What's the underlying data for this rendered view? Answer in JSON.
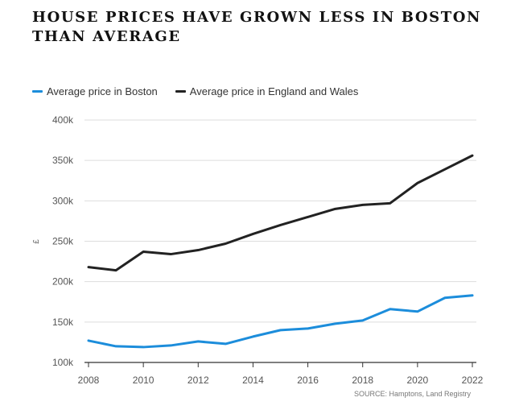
{
  "title": "HOUSE PRICES HAVE GROWN LESS IN BOSTON THAN AVERAGE",
  "source": "SOURCE: Hamptons, Land Registry",
  "colors": {
    "boston": "#1c8ddb",
    "england_wales": "#222222",
    "grid": "#dddddd"
  },
  "chart_data": {
    "type": "line",
    "title": "HOUSE PRICES HAVE GROWN LESS IN BOSTON THAN AVERAGE",
    "xlabel": "",
    "ylabel": "£",
    "x": [
      2008,
      2009,
      2010,
      2011,
      2012,
      2013,
      2014,
      2015,
      2016,
      2017,
      2018,
      2019,
      2020,
      2021,
      2022
    ],
    "xlim": [
      2008,
      2022.3
    ],
    "ylim": [
      100000,
      400000
    ],
    "x_ticks": [
      {
        "value": 2008,
        "label": "2008"
      },
      {
        "value": 2010,
        "label": "2010"
      },
      {
        "value": 2012,
        "label": "2012"
      },
      {
        "value": 2014,
        "label": "2014"
      },
      {
        "value": 2016,
        "label": "2016"
      },
      {
        "value": 2018,
        "label": "2018"
      },
      {
        "value": 2020,
        "label": "2020"
      },
      {
        "value": 2022,
        "label": "2022"
      }
    ],
    "y_ticks": [
      {
        "value": 100000,
        "label": "100k"
      },
      {
        "value": 150000,
        "label": "150k"
      },
      {
        "value": 200000,
        "label": "200k"
      },
      {
        "value": 250000,
        "label": "250k"
      },
      {
        "value": 300000,
        "label": "300k"
      },
      {
        "value": 350000,
        "label": "350k"
      },
      {
        "value": 400000,
        "label": "400k"
      }
    ],
    "grid": true,
    "legend_position": "top-left",
    "series": [
      {
        "name": "Average price in Boston",
        "color": "#1c8ddb",
        "values": [
          127000,
          120000,
          119000,
          121000,
          126000,
          123000,
          132000,
          140000,
          142000,
          148000,
          152000,
          166000,
          163000,
          180000,
          183000
        ]
      },
      {
        "name": "Average price in England and Wales",
        "color": "#222222",
        "values": [
          218000,
          214000,
          237000,
          234000,
          239000,
          247000,
          259000,
          270000,
          280000,
          290000,
          295000,
          297000,
          322000,
          339000,
          356000
        ]
      }
    ]
  }
}
